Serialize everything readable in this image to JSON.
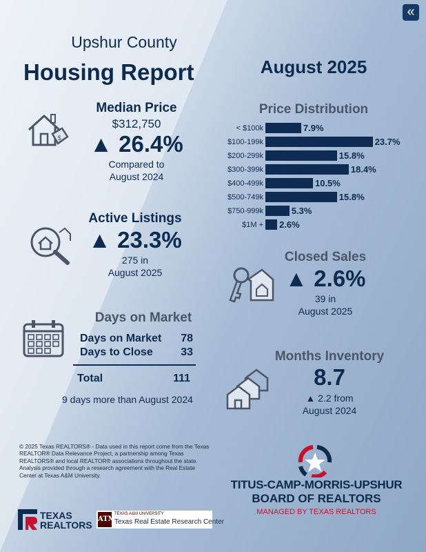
{
  "nav": {
    "back_icon": "double-chevron-left-icon"
  },
  "header": {
    "county": "Upshur County",
    "title": "Housing Report",
    "period": "August 2025"
  },
  "median_price": {
    "heading": "Median Price",
    "value": "$312,750",
    "change": "▲ 26.4%",
    "compare_1": "Compared to",
    "compare_2": "August 2024"
  },
  "active_listings": {
    "heading": "Active Listings",
    "change": "▲ 23.3%",
    "line_1": "275 in",
    "line_2": "August 2025"
  },
  "days_on_market": {
    "heading": "Days on Market",
    "rows": [
      {
        "label": "Days on Market",
        "value": "78"
      },
      {
        "label": "Days to Close",
        "value": "33"
      }
    ],
    "total_label": "Total",
    "total_value": "111",
    "note": "9 days more than August 2024"
  },
  "price_distribution": {
    "heading": "Price Distribution"
  },
  "chart_data": {
    "type": "bar",
    "orientation": "horizontal",
    "title": "Price Distribution",
    "categories": [
      "< $100k",
      "$100-199k",
      "$200-299k",
      "$300-399k",
      "$400-499k",
      "$500-749k",
      "$750-999k",
      "$1M +"
    ],
    "values": [
      7.9,
      23.7,
      15.8,
      18.4,
      10.5,
      15.8,
      5.3,
      2.6
    ],
    "value_labels": [
      "7.9%",
      "23.7%",
      "15.8%",
      "18.4%",
      "10.5%",
      "15.8%",
      "5.3%",
      "2.6%"
    ],
    "bar_color": "#0e2b52"
  },
  "closed_sales": {
    "heading": "Closed Sales",
    "change": "▲ 2.6%",
    "line_1": "39 in",
    "line_2": "August 2025"
  },
  "months_inventory": {
    "heading": "Months Inventory",
    "value": "8.7",
    "line_1": "▲ 2.2 from",
    "line_2": "August 2024"
  },
  "disclaimer": "© 2025 Texas REALTORS® - Data used in this report come from the Texas REALTOR® Data Relevance Project, a partnership among Texas REALTORS® and local REALTOR® associations throughout the state. Analysis provided through a research agreement with the Real Estate Center at Texas A&M University.",
  "board": {
    "line_1": "TITUS-CAMP-MORRIS-UPSHUR",
    "line_2": "BOARD OF REALTORS",
    "line_3": "MANAGED BY TEXAS REALTORS"
  },
  "logos": {
    "texas_realtors_1": "TEXAS",
    "texas_realtors_2": "REALTORS",
    "tamu_1": "TEXAS A&M UNIVERSITY",
    "tamu_2": "Texas Real Estate Research Center"
  },
  "colors": {
    "navy": "#0d2a4f",
    "slate": "#4a5668",
    "red": "#c8102e",
    "maroon": "#500000"
  }
}
